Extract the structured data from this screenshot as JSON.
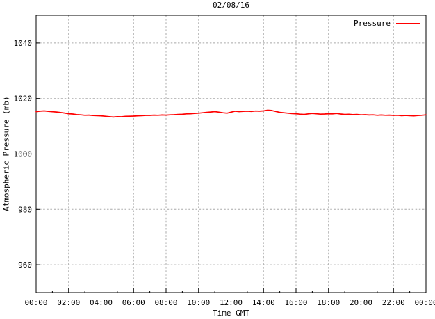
{
  "chart_data": {
    "type": "line",
    "title": "02/08/16",
    "xlabel": "Time GMT",
    "ylabel": "Atmospheric Pressure (mb)",
    "legend_position": "top-right-inside",
    "grid": true,
    "xlim_hours": [
      0,
      24
    ],
    "ylim": [
      950,
      1050
    ],
    "colors": {
      "background": "#ffffff",
      "axis": "#000000",
      "grid": "#a8a8a8",
      "text": "#000000",
      "pressure_line": "#ff0000"
    },
    "x_ticks": [
      {
        "hour": 0,
        "label": "00:00"
      },
      {
        "hour": 2,
        "label": "02:00"
      },
      {
        "hour": 4,
        "label": "04:00"
      },
      {
        "hour": 6,
        "label": "06:00"
      },
      {
        "hour": 8,
        "label": "08:00"
      },
      {
        "hour": 10,
        "label": "10:00"
      },
      {
        "hour": 12,
        "label": "12:00"
      },
      {
        "hour": 14,
        "label": "14:00"
      },
      {
        "hour": 16,
        "label": "16:00"
      },
      {
        "hour": 18,
        "label": "18:00"
      },
      {
        "hour": 20,
        "label": "20:00"
      },
      {
        "hour": 22,
        "label": "22:00"
      },
      {
        "hour": 24,
        "label": "00:00"
      }
    ],
    "x_minor_hours": [
      1,
      3,
      5,
      7,
      9,
      11,
      13,
      15,
      17,
      19,
      21,
      23
    ],
    "y_ticks": [
      {
        "value": 960,
        "label": "960"
      },
      {
        "value": 980,
        "label": "980"
      },
      {
        "value": 1000,
        "label": "1000"
      },
      {
        "value": 1020,
        "label": "1020"
      },
      {
        "value": 1040,
        "label": "1040"
      }
    ],
    "series": [
      {
        "name": "Pressure",
        "color": "#ff0000",
        "x_hours": {
          "start": 0,
          "step": 0.25
        },
        "values": [
          1015.3,
          1015.45,
          1015.55,
          1015.4,
          1015.25,
          1015.15,
          1014.95,
          1014.75,
          1014.5,
          1014.4,
          1014.2,
          1014.1,
          1013.95,
          1014.0,
          1013.85,
          1013.8,
          1013.75,
          1013.6,
          1013.45,
          1013.3,
          1013.45,
          1013.4,
          1013.55,
          1013.6,
          1013.65,
          1013.75,
          1013.8,
          1013.9,
          1013.9,
          1014.0,
          1013.95,
          1014.05,
          1014.0,
          1014.1,
          1014.15,
          1014.25,
          1014.3,
          1014.45,
          1014.5,
          1014.6,
          1014.7,
          1014.85,
          1015.0,
          1015.15,
          1015.3,
          1015.1,
          1014.85,
          1014.7,
          1015.1,
          1015.45,
          1015.3,
          1015.4,
          1015.45,
          1015.35,
          1015.5,
          1015.45,
          1015.55,
          1015.8,
          1015.7,
          1015.35,
          1015.0,
          1014.85,
          1014.7,
          1014.55,
          1014.5,
          1014.35,
          1014.25,
          1014.45,
          1014.6,
          1014.5,
          1014.35,
          1014.4,
          1014.5,
          1014.45,
          1014.6,
          1014.4,
          1014.25,
          1014.3,
          1014.2,
          1014.25,
          1014.1,
          1014.15,
          1014.05,
          1014.1,
          1013.95,
          1014.05,
          1013.95,
          1014.0,
          1013.9,
          1013.95,
          1013.8,
          1013.9,
          1013.8,
          1013.75,
          1013.85,
          1013.95,
          1014.1
        ]
      }
    ]
  }
}
